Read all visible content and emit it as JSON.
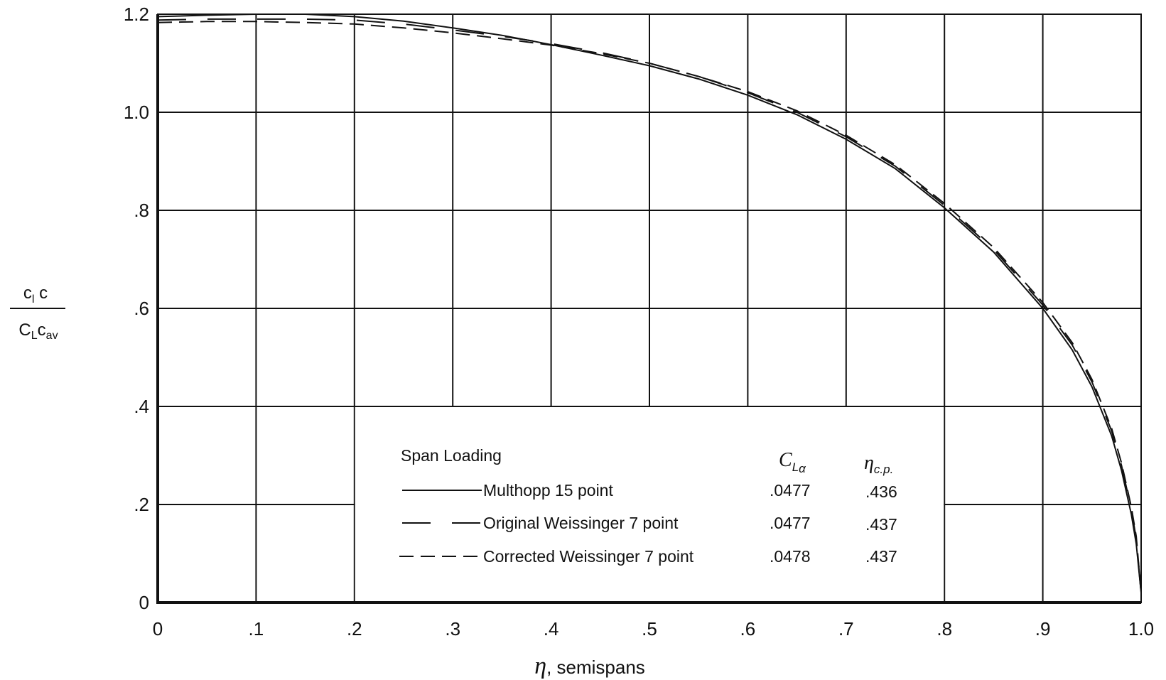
{
  "chart_data": {
    "type": "line",
    "title": "",
    "xlabel": {
      "symbol": "η",
      "text": ", semispans"
    },
    "ylabel": {
      "numerator": {
        "main": "c",
        "sub": "l",
        "tail": " c"
      },
      "denominator": {
        "main": "C",
        "sub": "L",
        "tail": "c",
        "tail_sub": "av"
      }
    },
    "xlim": [
      0,
      1.0
    ],
    "ylim": [
      0,
      1.2
    ],
    "x_ticks": [
      {
        "value": 0,
        "label": "0"
      },
      {
        "value": 0.1,
        "label": ".1"
      },
      {
        "value": 0.2,
        "label": ".2"
      },
      {
        "value": 0.3,
        "label": ".3"
      },
      {
        "value": 0.4,
        "label": ".4"
      },
      {
        "value": 0.5,
        "label": ".5"
      },
      {
        "value": 0.6,
        "label": ".6"
      },
      {
        "value": 0.7,
        "label": ".7"
      },
      {
        "value": 0.8,
        "label": ".8"
      },
      {
        "value": 0.9,
        "label": ".9"
      },
      {
        "value": 1.0,
        "label": "1.0"
      }
    ],
    "y_ticks": [
      {
        "value": 0,
        "label": "0"
      },
      {
        "value": 0.2,
        "label": ".2"
      },
      {
        "value": 0.4,
        "label": ".4"
      },
      {
        "value": 0.6,
        "label": ".6"
      },
      {
        "value": 0.8,
        "label": ".8"
      },
      {
        "value": 1.0,
        "label": "1.0"
      },
      {
        "value": 1.2,
        "label": "1.2"
      }
    ],
    "grid": true,
    "legend": {
      "placement": "lower-center",
      "heading": "Span  Loading",
      "col_cla": {
        "main": "C",
        "sub": "L",
        "sub2": "α"
      },
      "col_eta": {
        "main": "η",
        "sub": "c.p."
      }
    },
    "series": [
      {
        "name": "Multhopp  15 point",
        "style": "solid",
        "cla": ".0477",
        "eta_cp": ".436",
        "x": [
          0,
          0.05,
          0.1,
          0.15,
          0.2,
          0.25,
          0.3,
          0.35,
          0.4,
          0.45,
          0.5,
          0.55,
          0.6,
          0.65,
          0.7,
          0.75,
          0.8,
          0.85,
          0.9,
          0.93,
          0.95,
          0.97,
          0.98,
          0.99,
          0.995,
          1.0
        ],
        "y": [
          1.195,
          1.198,
          1.2,
          1.2,
          1.195,
          1.186,
          1.172,
          1.157,
          1.138,
          1.117,
          1.095,
          1.068,
          1.035,
          0.995,
          0.945,
          0.885,
          0.805,
          0.715,
          0.6,
          0.515,
          0.44,
          0.34,
          0.27,
          0.18,
          0.12,
          0.02
        ]
      },
      {
        "name": "Original  Weissinger  7 point",
        "style": "long-dash",
        "cla": ".0477",
        "eta_cp": ".437",
        "x": [
          0,
          0.05,
          0.1,
          0.15,
          0.2,
          0.25,
          0.3,
          0.35,
          0.4,
          0.45,
          0.5,
          0.55,
          0.6,
          0.65,
          0.7,
          0.75,
          0.8,
          0.85,
          0.9,
          0.93,
          0.95,
          0.97,
          0.98,
          0.99,
          0.995,
          1.0
        ],
        "y": [
          1.188,
          1.19,
          1.19,
          1.19,
          1.188,
          1.18,
          1.168,
          1.155,
          1.14,
          1.122,
          1.1,
          1.073,
          1.04,
          1.0,
          0.95,
          0.89,
          0.81,
          0.72,
          0.607,
          0.525,
          0.45,
          0.35,
          0.28,
          0.19,
          0.13,
          0.02
        ]
      },
      {
        "name": "Corrected  Weissinger  7 point",
        "style": "short-dash",
        "cla": ".0478",
        "eta_cp": ".437",
        "x": [
          0,
          0.05,
          0.1,
          0.15,
          0.2,
          0.25,
          0.3,
          0.35,
          0.4,
          0.45,
          0.5,
          0.55,
          0.6,
          0.65,
          0.7,
          0.75,
          0.8,
          0.85,
          0.9,
          0.93,
          0.95,
          0.97,
          0.98,
          0.99,
          0.995,
          1.0
        ],
        "y": [
          1.183,
          1.185,
          1.185,
          1.183,
          1.18,
          1.172,
          1.162,
          1.15,
          1.137,
          1.12,
          1.1,
          1.073,
          1.042,
          1.003,
          0.953,
          0.893,
          0.814,
          0.724,
          0.612,
          0.53,
          0.455,
          0.355,
          0.285,
          0.195,
          0.135,
          0.02
        ]
      }
    ]
  }
}
